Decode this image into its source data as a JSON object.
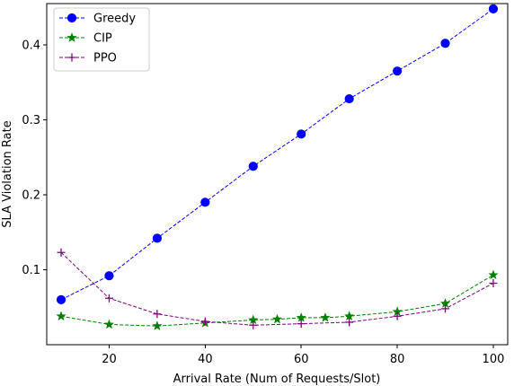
{
  "chart_data": {
    "type": "line",
    "xlabel": "Arrival Rate (Num of Requests/Slot)",
    "ylabel": "SLA Violation Rate",
    "xlim": [
      7,
      103
    ],
    "ylim": [
      0.0,
      0.455
    ],
    "xticks": [
      20,
      40,
      60,
      80,
      100
    ],
    "yticks": [
      0.1,
      0.2,
      0.3,
      0.4
    ],
    "grid": false,
    "legend": "top-left",
    "series": [
      {
        "name": "Greedy",
        "color": "#0000ff",
        "marker": "circle",
        "line_style": "dashed",
        "x": [
          10,
          20,
          30,
          40,
          50,
          60,
          70,
          80,
          90,
          100
        ],
        "y": [
          0.06,
          0.092,
          0.142,
          0.19,
          0.238,
          0.281,
          0.328,
          0.365,
          0.402,
          0.448
        ]
      },
      {
        "name": "CIP",
        "color": "#008000",
        "marker": "star",
        "line_style": "dashed",
        "x": [
          10,
          20,
          30,
          40,
          50,
          55,
          60,
          65,
          70,
          80,
          90,
          100
        ],
        "y": [
          0.038,
          0.027,
          0.025,
          0.029,
          0.033,
          0.034,
          0.036,
          0.036,
          0.038,
          0.044,
          0.055,
          0.093
        ]
      },
      {
        "name": "PPO",
        "color": "#800080",
        "marker": "plus",
        "line_style": "dashed",
        "x": [
          10,
          20,
          30,
          40,
          50,
          60,
          70,
          80,
          90,
          100
        ],
        "y": [
          0.123,
          0.062,
          0.041,
          0.031,
          0.026,
          0.028,
          0.03,
          0.038,
          0.048,
          0.082
        ]
      }
    ]
  }
}
